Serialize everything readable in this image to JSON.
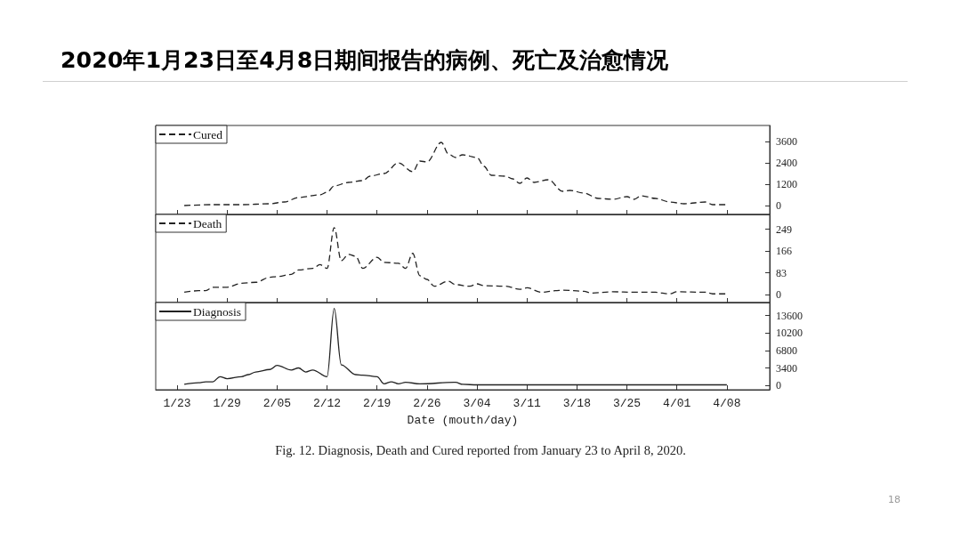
{
  "chart_data": [
    {
      "type": "line",
      "title": "2020年1月23日至4月8日期间报告的病例、死亡及治愈情况",
      "x": [
        "--01-23",
        "--01-27",
        "--01-31",
        "--02-04",
        "--02-06",
        "--02-08",
        "--02-11",
        "--02-12",
        "--02-13",
        "--02-15",
        "--02-17",
        "--02-18",
        "--02-20",
        "--02-22",
        "--02-24",
        "--02-25",
        "--02-26",
        "--02-28",
        "--02-29",
        "--03-01",
        "--03-02",
        "--03-04",
        "--03-05",
        "--03-06",
        "--03-08",
        "--03-09",
        "--03-10",
        "--03-11",
        "--03-12",
        "--03-14",
        "--03-16",
        "--03-17",
        "--03-19",
        "--03-21",
        "--03-23",
        "--03-25",
        "--03-26",
        "--03-27",
        "--03-29",
        "--03-31",
        "--04-02",
        "--04-05",
        "--04-06",
        "--04-08"
      ],
      "series": [
        {
          "name": "Cured",
          "color": "#222222",
          "values": [
            0,
            50,
            50,
            100,
            200,
            450,
            600,
            750,
            1100,
            1300,
            1400,
            1650,
            1800,
            2400,
            1900,
            2500,
            2450,
            3550,
            2900,
            2700,
            2850,
            2700,
            2200,
            1700,
            1650,
            1500,
            1250,
            1550,
            1300,
            1450,
            800,
            850,
            700,
            400,
            350,
            500,
            350,
            550,
            400,
            200,
            100,
            200,
            50,
            50
          ]
        }
      ],
      "xlim": [
        "--01-19",
        "--04-14"
      ],
      "xticks": [
        {
          "value": "--01-22",
          "label": "1/23"
        },
        {
          "value": "--01-29",
          "label": "1/29"
        },
        {
          "value": "--02-05",
          "label": "2/05"
        },
        {
          "value": "--02-12",
          "label": "2/12"
        },
        {
          "value": "--02-19",
          "label": "2/19"
        },
        {
          "value": "--02-26",
          "label": "2/26"
        },
        {
          "value": "--03-04",
          "label": "3/04"
        },
        {
          "value": "--03-11",
          "label": "3/11"
        },
        {
          "value": "--03-18",
          "label": "3/18"
        },
        {
          "value": "--03-25",
          "label": "3/25"
        },
        {
          "value": "--04-01",
          "label": "4/01"
        },
        {
          "value": "--04-08",
          "label": "4/08"
        }
      ],
      "ylim": [
        -500,
        4500
      ],
      "yticks": [
        0,
        1200,
        2400,
        3600
      ],
      "legend": "top left",
      "line_style": "dashed",
      "tick_labels": "y"
    },
    {
      "type": "line",
      "x": [
        "--01-23",
        "--01-25",
        "--01-26",
        "--01-27",
        "--01-29",
        "--01-31",
        "--02-02",
        "--02-04",
        "--02-05",
        "--02-07",
        "--02-08",
        "--02-10",
        "--02-11",
        "--02-12",
        "--02-13",
        "--02-14",
        "--02-15",
        "--02-16",
        "--02-17",
        "--02-19",
        "--02-20",
        "--02-22",
        "--02-23",
        "--02-24",
        "--02-25",
        "--02-26",
        "--02-27",
        "--02-29",
        "--03-01",
        "--03-03",
        "--03-04",
        "--03-05",
        "--03-08",
        "--03-10",
        "--03-11",
        "--03-13",
        "--03-15",
        "--03-16",
        "--03-19",
        "--03-20",
        "--03-23",
        "--03-26",
        "--03-29",
        "--03-31",
        "--04-01",
        "--04-05",
        "--04-06",
        "--04-08"
      ],
      "series": [
        {
          "name": "Death",
          "color": "#222222",
          "values": [
            9,
            15,
            15,
            28,
            28,
            43,
            47,
            66,
            69,
            77,
            94,
            100,
            114,
            100,
            255,
            129,
            153,
            146,
            100,
            142,
            123,
            119,
            100,
            157,
            72,
            58,
            32,
            51,
            38,
            32,
            41,
            34,
            32,
            20,
            26,
            9,
            15,
            17,
            13,
            6,
            11,
            9,
            9,
            3,
            11,
            9,
            3,
            3
          ]
        }
      ],
      "xlim": [
        "--01-19",
        "--04-14"
      ],
      "xticks": [
        {
          "value": "--01-22",
          "label": "1/23"
        },
        {
          "value": "--01-29",
          "label": "1/29"
        },
        {
          "value": "--02-05",
          "label": "2/05"
        },
        {
          "value": "--02-12",
          "label": "2/12"
        },
        {
          "value": "--02-19",
          "label": "2/19"
        },
        {
          "value": "--02-26",
          "label": "2/26"
        },
        {
          "value": "--03-04",
          "label": "3/04"
        },
        {
          "value": "--03-11",
          "label": "3/11"
        },
        {
          "value": "--03-18",
          "label": "3/18"
        },
        {
          "value": "--03-25",
          "label": "3/25"
        },
        {
          "value": "--04-01",
          "label": "4/01"
        },
        {
          "value": "--04-08",
          "label": "4/08"
        }
      ],
      "ylim": [
        -30,
        305
      ],
      "yticks": [
        0,
        83,
        166,
        249
      ],
      "legend": "top left",
      "line_style": "dashed",
      "tick_labels": "y"
    },
    {
      "type": "line",
      "xlabel": "Date (mouth/day)",
      "annotations": [
        "Fig. 12. Diagnosis, Death and Cured reported from January 23 to April 8, 2020.",
        "18"
      ],
      "x": [
        "--01-23",
        "--01-25",
        "--01-26",
        "--01-27",
        "--01-28",
        "--01-29",
        "--01-31",
        "--02-01",
        "--02-02",
        "--02-04",
        "--02-05",
        "--02-07",
        "--02-08",
        "--02-09",
        "--02-10",
        "--02-12",
        "--02-13",
        "--02-14",
        "--02-16",
        "--02-17",
        "--02-19",
        "--02-20",
        "--02-21",
        "--02-22",
        "--02-23",
        "--02-25",
        "--03-01",
        "--03-02",
        "--03-04",
        "--03-08",
        "--03-13",
        "--03-18",
        "--03-23",
        "--03-28",
        "--04-02",
        "--04-08"
      ],
      "series": [
        {
          "name": "Diagnosis",
          "color": "#222222",
          "values": [
            200,
            500,
            700,
            700,
            1700,
            1300,
            1700,
            2100,
            2600,
            3100,
            3900,
            3000,
            3400,
            2600,
            3000,
            1700,
            15000,
            4000,
            2100,
            2000,
            1700,
            300,
            700,
            300,
            600,
            300,
            600,
            200,
            100,
            100,
            100,
            100,
            100,
            100,
            100,
            100
          ]
        }
      ],
      "xlim": [
        "--01-19",
        "--04-14"
      ],
      "xticks": [
        {
          "value": "--01-22",
          "label": "1/23"
        },
        {
          "value": "--01-29",
          "label": "1/29"
        },
        {
          "value": "--02-05",
          "label": "2/05"
        },
        {
          "value": "--02-12",
          "label": "2/12"
        },
        {
          "value": "--02-19",
          "label": "2/19"
        },
        {
          "value": "--02-26",
          "label": "2/26"
        },
        {
          "value": "--03-04",
          "label": "3/04"
        },
        {
          "value": "--03-11",
          "label": "3/11"
        },
        {
          "value": "--03-18",
          "label": "3/18"
        },
        {
          "value": "--03-25",
          "label": "3/25"
        },
        {
          "value": "--04-01",
          "label": "4/01"
        },
        {
          "value": "--04-08",
          "label": "4/08"
        }
      ],
      "ylim": [
        -850,
        16150
      ],
      "yticks": [
        0,
        3400,
        6800,
        10200,
        13600
      ],
      "legend": "top left",
      "line_style": "solid"
    }
  ]
}
